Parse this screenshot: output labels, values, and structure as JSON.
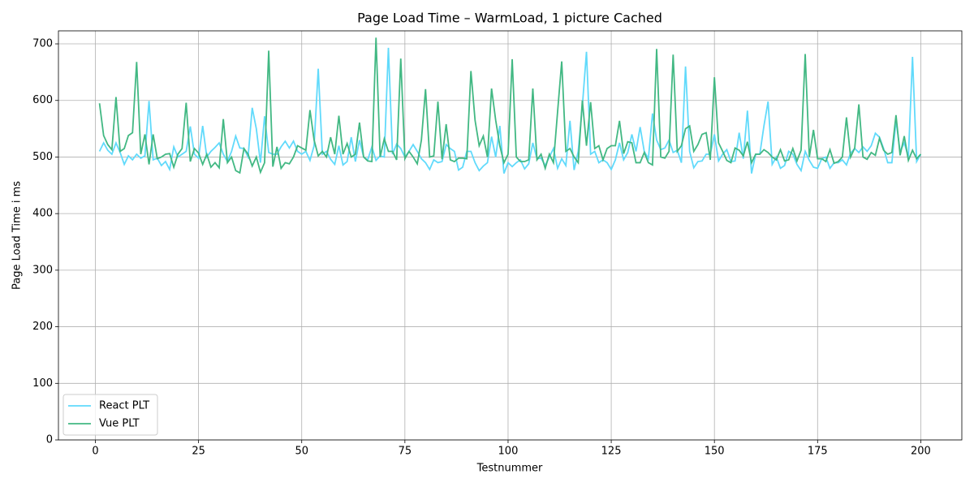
{
  "chart_data": {
    "type": "line",
    "title": "Page Load Time – WarmLoad, 1 picture Cached",
    "x_label": "Testnummer",
    "y_label": "Page Load Time i ms",
    "x": [
      1,
      2,
      3,
      4,
      5,
      6,
      7,
      8,
      9,
      10,
      11,
      12,
      13,
      14,
      15,
      16,
      17,
      18,
      19,
      20,
      21,
      22,
      23,
      24,
      25,
      26,
      27,
      28,
      29,
      30,
      31,
      32,
      33,
      34,
      35,
      36,
      37,
      38,
      39,
      40,
      41,
      42,
      43,
      44,
      45,
      46,
      47,
      48,
      49,
      50,
      51,
      52,
      53,
      54,
      55,
      56,
      57,
      58,
      59,
      60,
      61,
      62,
      63,
      64,
      65,
      66,
      67,
      68,
      69,
      70,
      71,
      72,
      73,
      74,
      75,
      76,
      77,
      78,
      79,
      80,
      81,
      82,
      83,
      84,
      85,
      86,
      87,
      88,
      89,
      90,
      91,
      92,
      93,
      94,
      95,
      96,
      97,
      98,
      99,
      100,
      101,
      102,
      103,
      104,
      105,
      106,
      107,
      108,
      109,
      110,
      111,
      112,
      113,
      114,
      115,
      116,
      117,
      118,
      119,
      120,
      121,
      122,
      123,
      124,
      125,
      126,
      127,
      128,
      129,
      130,
      131,
      132,
      133,
      134,
      135,
      136,
      137,
      138,
      139,
      140,
      141,
      142,
      143,
      144,
      145,
      146,
      147,
      148,
      149,
      150,
      151,
      152,
      153,
      154,
      155,
      156,
      157,
      158,
      159,
      160,
      161,
      162,
      163,
      164,
      165,
      166,
      167,
      168,
      169,
      170,
      171,
      172,
      173,
      174,
      175,
      176,
      177,
      178,
      179,
      180,
      181,
      182,
      183,
      184,
      185,
      186,
      187,
      188,
      189,
      190,
      191,
      192,
      193,
      194,
      195,
      196,
      197,
      198,
      199,
      200
    ],
    "series": [
      {
        "name": "React PLT",
        "color": "#61dafb",
        "values": [
          510,
          525,
          512,
          505,
          525,
          508,
          487,
          502,
          495,
          505,
          498,
          502,
          599,
          495,
          498,
          485,
          492,
          478,
          518,
          500,
          505,
          510,
          554,
          505,
          498,
          555,
          500,
          510,
          517,
          525,
          505,
          492,
          510,
          537,
          516,
          515,
          500,
          587,
          550,
          490,
          572,
          508,
          505,
          505,
          518,
          528,
          516,
          528,
          510,
          505,
          510,
          494,
          520,
          656,
          505,
          510,
          496,
          487,
          520,
          486,
          492,
          535,
          492,
          530,
          500,
          495,
          518,
          494,
          502,
          500,
          693,
          505,
          523,
          515,
          500,
          510,
          522,
          510,
          497,
          490,
          478,
          495,
          490,
          492,
          522,
          515,
          510,
          477,
          482,
          510,
          510,
          490,
          476,
          484,
          490,
          536,
          500,
          555,
          471,
          490,
          483,
          490,
          495,
          479,
          488,
          525,
          497,
          498,
          485,
          500,
          515,
          480,
          497,
          485,
          564,
          477,
          510,
          590,
          686,
          505,
          510,
          490,
          495,
          490,
          478,
          495,
          525,
          495,
          508,
          540,
          510,
          553,
          510,
          497,
          577,
          530,
          513,
          516,
          530,
          508,
          512,
          490,
          660,
          510,
          481,
          492,
          493,
          505,
          505,
          540,
          493,
          505,
          513,
          492,
          493,
          543,
          497,
          582,
          471,
          505,
          505,
          555,
          598,
          487,
          500,
          480,
          485,
          510,
          505,
          487,
          476,
          510,
          494,
          482,
          480,
          497,
          500,
          480,
          490,
          490,
          495,
          486,
          507,
          515,
          508,
          518,
          510,
          520,
          542,
          535,
          515,
          490,
          490,
          565,
          510,
          525,
          500,
          677,
          492,
          505
        ]
      },
      {
        "name": "Vue PLT",
        "color": "#42b883",
        "values": [
          595,
          538,
          522,
          513,
          606,
          510,
          515,
          538,
          543,
          668,
          505,
          540,
          487,
          540,
          497,
          500,
          505,
          506,
          482,
          505,
          515,
          596,
          492,
          515,
          507,
          487,
          505,
          482,
          490,
          481,
          567,
          490,
          500,
          476,
          472,
          515,
          505,
          484,
          500,
          473,
          490,
          688,
          483,
          518,
          480,
          490,
          488,
          500,
          520,
          516,
          512,
          583,
          530,
          502,
          510,
          500,
          535,
          505,
          573,
          505,
          524,
          500,
          505,
          561,
          500,
          493,
          492,
          711,
          500,
          532,
          510,
          510,
          495,
          674,
          497,
          510,
          500,
          488,
          530,
          620,
          500,
          502,
          598,
          496,
          558,
          495,
          492,
          498,
          498,
          497,
          652,
          565,
          520,
          537,
          500,
          621,
          565,
          520,
          490,
          505,
          673,
          500,
          492,
          492,
          495,
          621,
          495,
          505,
          480,
          505,
          490,
          580,
          669,
          510,
          515,
          500,
          490,
          600,
          520,
          597,
          515,
          520,
          495,
          515,
          520,
          520,
          564,
          506,
          527,
          525,
          490,
          490,
          508,
          490,
          486,
          691,
          500,
          498,
          510,
          681,
          510,
          520,
          550,
          555,
          510,
          522,
          540,
          543,
          495,
          641,
          525,
          510,
          494,
          490,
          516,
          512,
          502,
          527,
          490,
          505,
          505,
          513,
          508,
          500,
          495,
          513,
          493,
          495,
          515,
          493,
          512,
          682,
          500,
          548,
          497,
          497,
          492,
          513,
          489,
          492,
          500,
          570,
          500,
          516,
          593,
          500,
          496,
          508,
          503,
          533,
          512,
          505,
          508,
          574,
          503,
          537,
          494,
          512,
          497,
          505
        ]
      }
    ],
    "xlim": [
      -8.95,
      209.95
    ],
    "xticks": [
      0,
      25,
      50,
      75,
      100,
      125,
      150,
      175,
      200
    ],
    "ylim": [
      0,
      723
    ],
    "yticks": [
      0,
      100,
      200,
      300,
      400,
      500,
      600,
      700
    ],
    "grid": true,
    "legend": "lower left"
  }
}
